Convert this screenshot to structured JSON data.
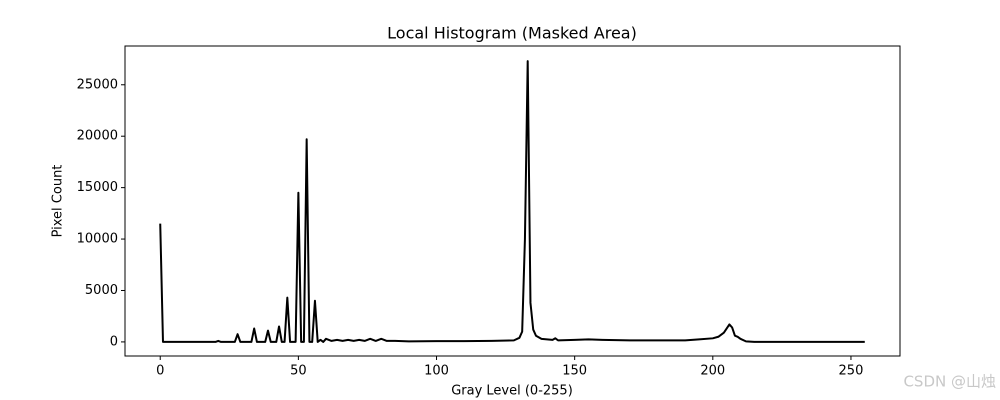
{
  "chart_data": {
    "type": "line",
    "title": "Local Histogram (Masked Area)",
    "x_label": "Gray Level (0-255)",
    "y_label": "Pixel Count",
    "x": [
      0,
      1,
      20,
      21,
      22,
      27,
      28,
      29,
      33,
      34,
      35,
      38,
      39,
      40,
      42,
      43,
      44,
      45,
      46,
      47,
      49,
      50,
      51,
      52,
      53,
      54,
      55,
      56,
      57,
      58,
      59,
      60,
      62,
      64,
      66,
      68,
      70,
      72,
      74,
      76,
      78,
      80,
      82,
      85,
      90,
      100,
      110,
      120,
      128,
      130,
      131,
      132,
      133,
      134,
      135,
      136,
      138,
      142,
      143,
      144,
      150,
      155,
      160,
      170,
      180,
      190,
      195,
      200,
      202,
      204,
      206,
      207,
      208,
      209,
      210,
      212,
      215,
      230,
      255
    ],
    "values": [
      11500,
      0,
      0,
      100,
      0,
      0,
      750,
      0,
      0,
      1300,
      0,
      0,
      1100,
      0,
      0,
      1500,
      0,
      0,
      4300,
      0,
      0,
      14500,
      0,
      0,
      19700,
      0,
      0,
      4000,
      0,
      200,
      0,
      300,
      100,
      200,
      100,
      200,
      100,
      200,
      100,
      300,
      100,
      300,
      100,
      100,
      50,
      80,
      80,
      100,
      150,
      400,
      1000,
      10000,
      27300,
      3800,
      1200,
      600,
      300,
      200,
      350,
      150,
      200,
      250,
      200,
      150,
      150,
      150,
      250,
      350,
      500,
      900,
      1700,
      1400,
      600,
      500,
      300,
      50,
      0,
      0,
      0
    ],
    "color": "#000000",
    "xlim": [
      -12.75,
      267.75
    ],
    "xticks": [
      0,
      50,
      100,
      150,
      200,
      250
    ],
    "ylim": [
      -1370,
      28770
    ],
    "yticks": [
      0,
      5000,
      10000,
      15000,
      20000,
      25000
    ],
    "grid": false,
    "watermark": "CSDN @山烛"
  }
}
